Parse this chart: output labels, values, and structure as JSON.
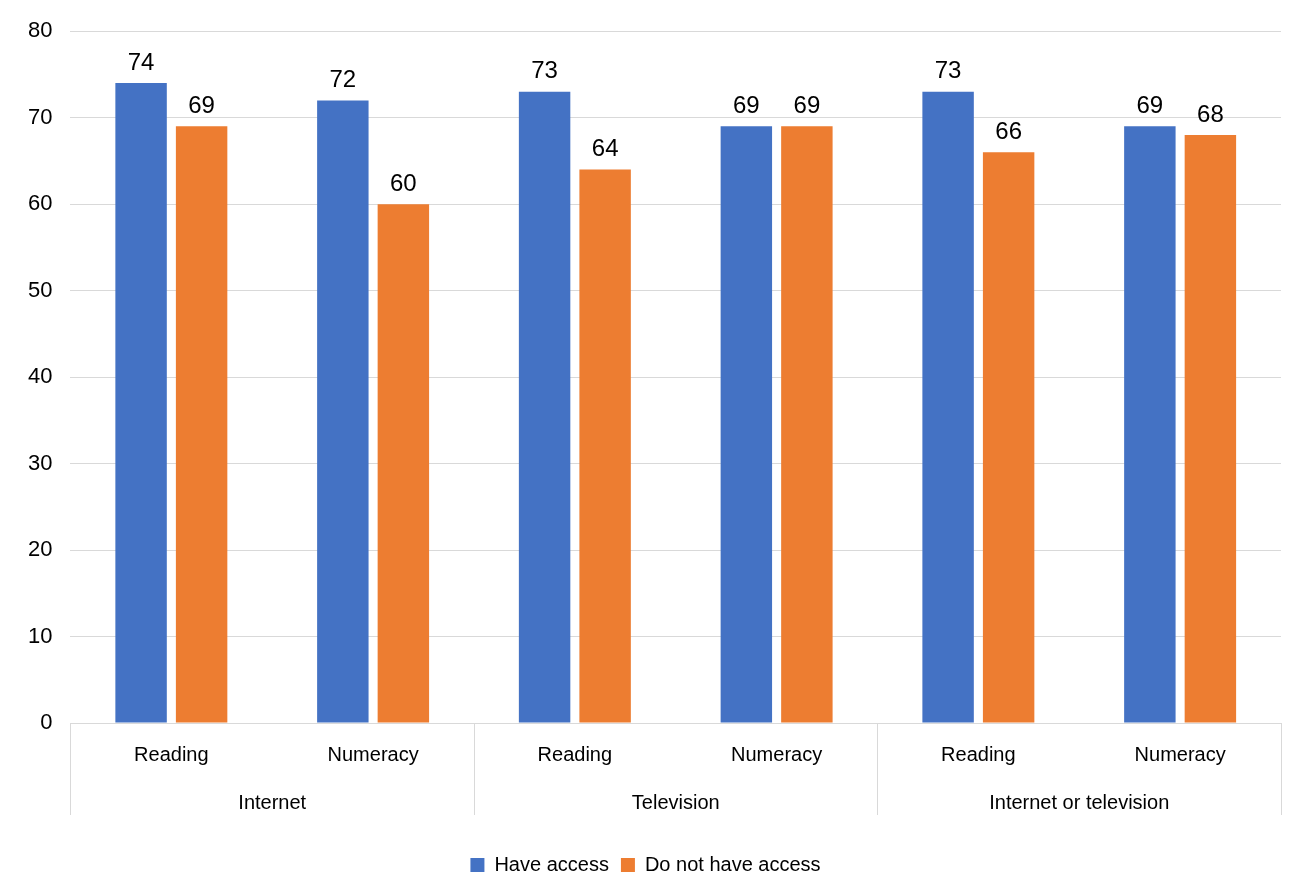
{
  "chart_data": {
    "type": "bar",
    "categories": [
      "Reading",
      "Numeracy",
      "Reading",
      "Numeracy",
      "Reading",
      "Numeracy"
    ],
    "annotations": [
      "Internet",
      "Television",
      "Internet or television"
    ],
    "series": [
      {
        "name": "Have access",
        "color": "#4472c4",
        "values": [
          74,
          72,
          73,
          69,
          73,
          69
        ]
      },
      {
        "name": "Do not have access",
        "color": "#ed7d31",
        "values": [
          69,
          60,
          64,
          69,
          66,
          68
        ]
      }
    ],
    "ylim": [
      0,
      80
    ],
    "yticks": [
      0,
      10,
      20,
      30,
      40,
      50,
      60,
      70,
      80
    ],
    "grid": "y",
    "legend": "bottom",
    "data_labels": true
  }
}
